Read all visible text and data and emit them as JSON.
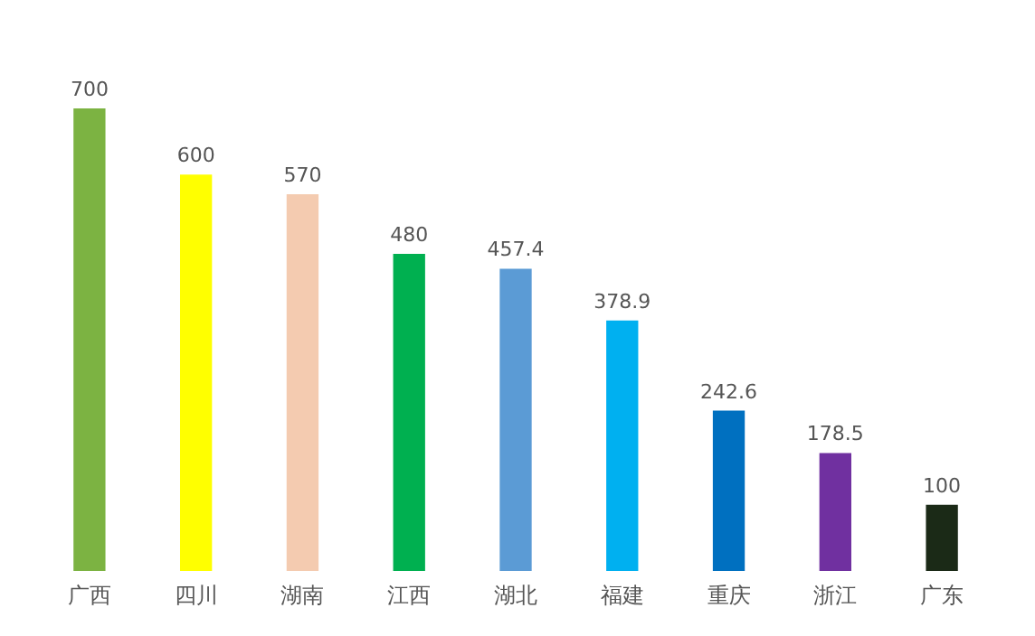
{
  "chart_data": {
    "type": "bar",
    "categories": [
      "广西",
      "四川",
      "湖南",
      "江西",
      "湖北",
      "福建",
      "重庆",
      "浙江",
      "广东"
    ],
    "values": [
      700,
      600,
      570,
      480,
      457.4,
      378.9,
      242.6,
      178.5,
      100
    ],
    "colors": [
      "#7cb342",
      "#ffff00",
      "#f4cbb0",
      "#00b050",
      "#5b9bd5",
      "#00b0f0",
      "#0070c0",
      "#7030a0",
      "#1b2a17"
    ],
    "data_labels": true,
    "grid": false
  }
}
